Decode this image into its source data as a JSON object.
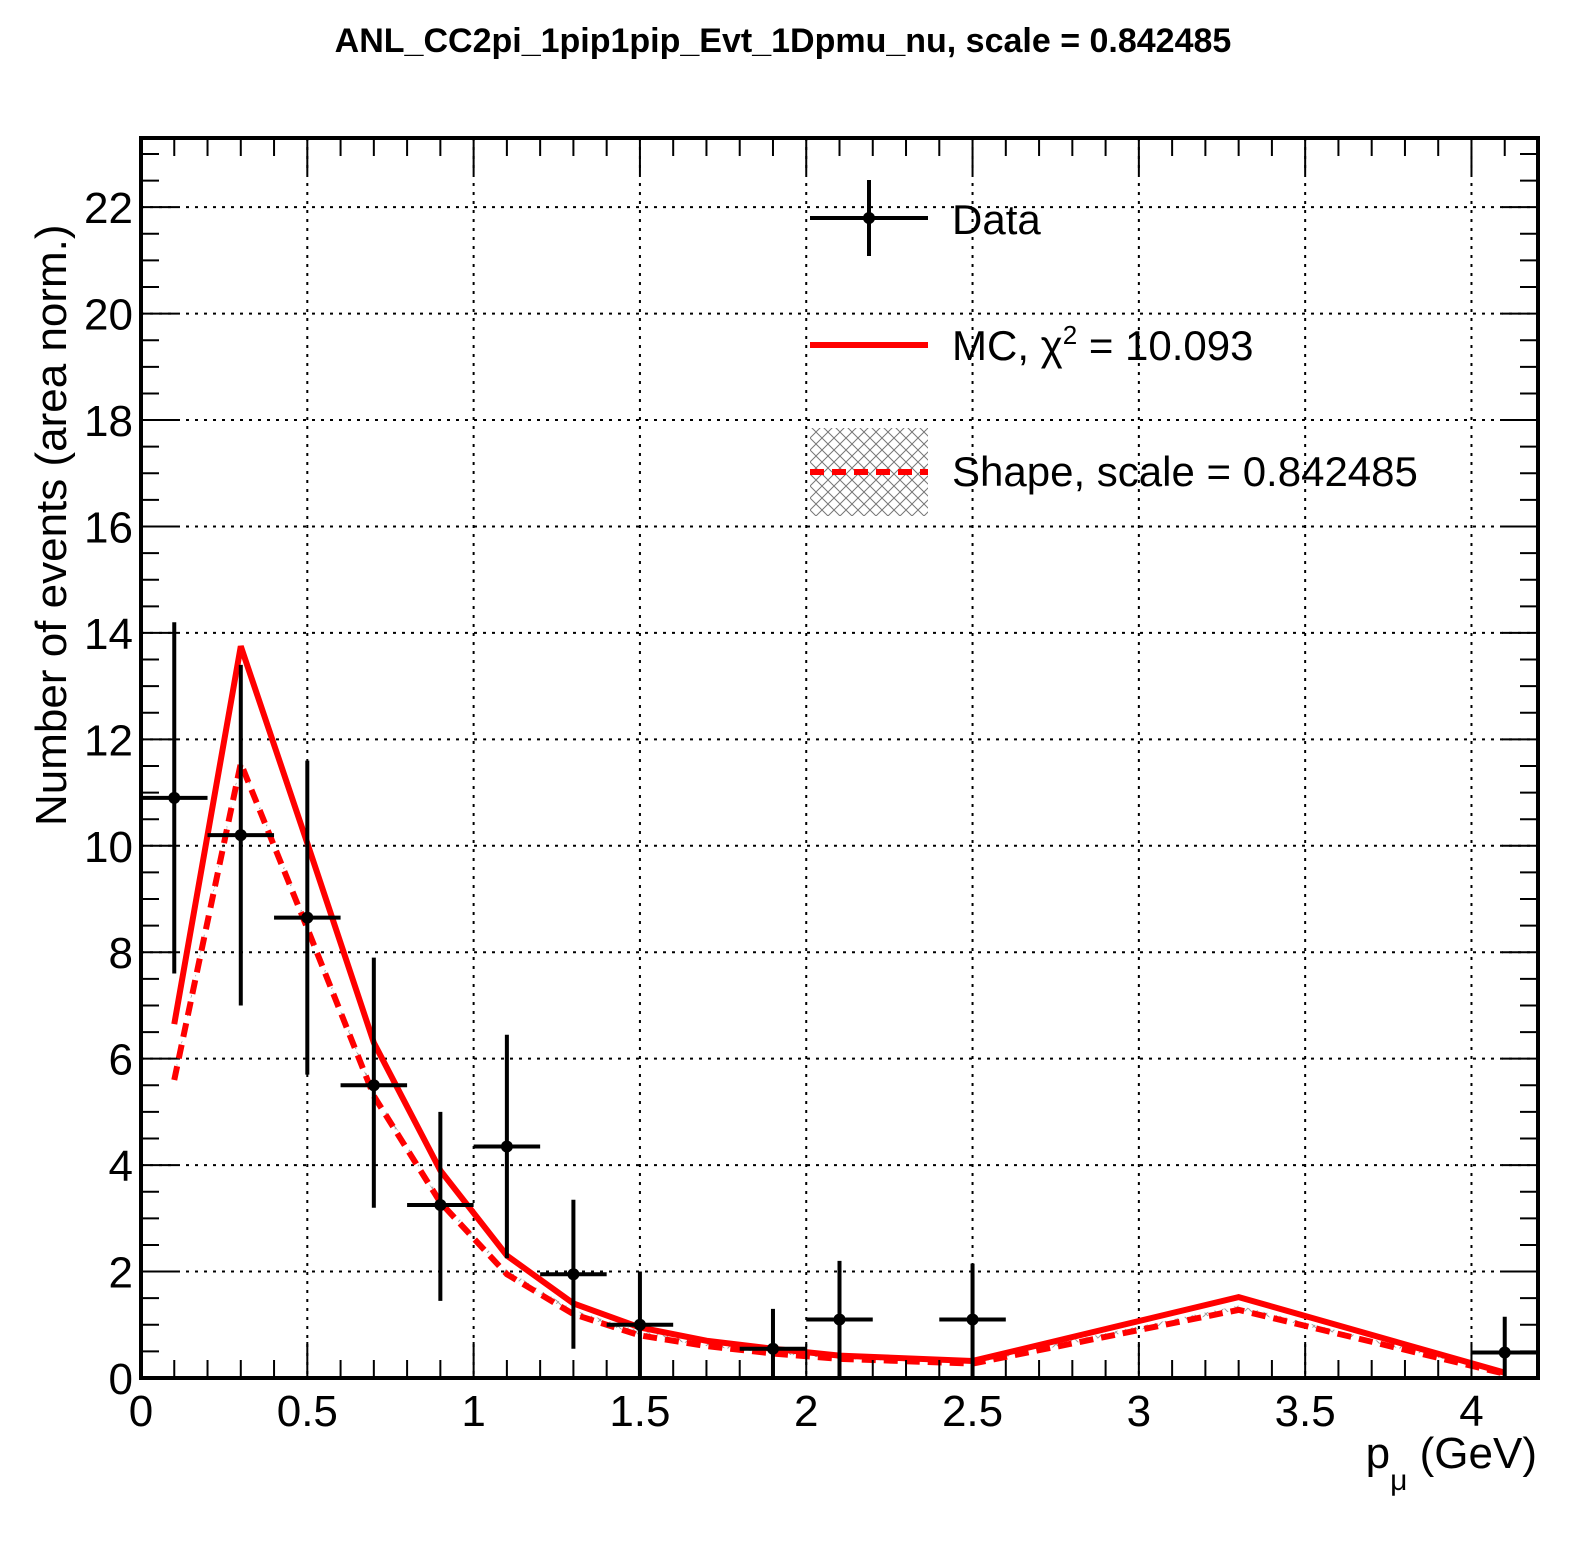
{
  "chart_data": {
    "type": "line",
    "title": "ANL_CC2pi_1pip1pip_Evt_1Dpmu_nu, scale = 0.842485",
    "xlabel": {
      "main": "p",
      "sub": "μ",
      "unit": " (GeV)"
    },
    "ylabel": "Number of events (area norm.)",
    "xlim": [
      0,
      4.2
    ],
    "ylim": [
      0,
      23.3
    ],
    "x_ticks": [
      0,
      0.5,
      1,
      1.5,
      2,
      2.5,
      3,
      3.5,
      4
    ],
    "x_tick_labels": [
      "0",
      "0.5",
      "1",
      "1.5",
      "2",
      "2.5",
      "3",
      "3.5",
      "4"
    ],
    "y_ticks": [
      0,
      2,
      4,
      6,
      8,
      10,
      12,
      14,
      16,
      18,
      20,
      22
    ],
    "y_tick_labels": [
      "0",
      "2",
      "4",
      "6",
      "8",
      "10",
      "12",
      "14",
      "16",
      "18",
      "20",
      "22"
    ],
    "grid": true,
    "legend_position": "top-right",
    "series": [
      {
        "name": "Data",
        "kind": "points-with-errors",
        "color": "#000000",
        "points": [
          {
            "x": 0.1,
            "xerr": 0.1,
            "y": 10.9,
            "ylo": 7.6,
            "yhi": 14.2
          },
          {
            "x": 0.3,
            "xerr": 0.1,
            "y": 10.2,
            "ylo": 7.0,
            "yhi": 13.4
          },
          {
            "x": 0.5,
            "xerr": 0.1,
            "y": 8.65,
            "ylo": 5.7,
            "yhi": 11.6
          },
          {
            "x": 0.7,
            "xerr": 0.1,
            "y": 5.5,
            "ylo": 3.2,
            "yhi": 7.9
          },
          {
            "x": 0.9,
            "xerr": 0.1,
            "y": 3.25,
            "ylo": 1.45,
            "yhi": 5.0
          },
          {
            "x": 1.1,
            "xerr": 0.1,
            "y": 4.35,
            "ylo": 2.25,
            "yhi": 6.45
          },
          {
            "x": 1.3,
            "xerr": 0.1,
            "y": 1.95,
            "ylo": 0.55,
            "yhi": 3.35
          },
          {
            "x": 1.5,
            "xerr": 0.1,
            "y": 1.0,
            "ylo": 0.0,
            "yhi": 2.0
          },
          {
            "x": 1.9,
            "xerr": 0.1,
            "y": 0.55,
            "ylo": 0.0,
            "yhi": 1.3
          },
          {
            "x": 2.1,
            "xerr": 0.1,
            "y": 1.1,
            "ylo": 0.0,
            "yhi": 2.2
          },
          {
            "x": 2.5,
            "xerr": 0.1,
            "y": 1.1,
            "ylo": 0.0,
            "yhi": 2.15
          },
          {
            "x": 4.1,
            "xerr": 0.1,
            "y": 0.48,
            "ylo": 0.0,
            "yhi": 1.15
          }
        ]
      },
      {
        "name": "MC, χ² = 10.093",
        "legend_label": {
          "text": "MC, χ",
          "sup": "2",
          "rest": " = 10.093"
        },
        "kind": "line",
        "color": "#ff0000",
        "x": [
          0.1,
          0.3,
          0.5,
          0.7,
          0.9,
          1.1,
          1.3,
          1.5,
          1.7,
          1.9,
          2.1,
          2.5,
          3.3,
          4.1
        ],
        "y": [
          6.65,
          13.75,
          10.05,
          6.3,
          3.9,
          2.3,
          1.4,
          0.95,
          0.7,
          0.55,
          0.42,
          0.32,
          1.52,
          0.1
        ]
      },
      {
        "name": "Shape, scale = 0.842485",
        "kind": "dashed-line-with-band",
        "color": "#ff0000",
        "band_color": "#999999",
        "x": [
          0.1,
          0.3,
          0.5,
          0.7,
          0.9,
          1.1,
          1.3,
          1.5,
          1.7,
          1.9,
          2.1,
          2.5,
          3.3,
          4.1
        ],
        "y": [
          5.6,
          11.55,
          8.45,
          5.3,
          3.3,
          1.95,
          1.2,
          0.8,
          0.6,
          0.46,
          0.36,
          0.27,
          1.28,
          0.08
        ]
      }
    ]
  }
}
